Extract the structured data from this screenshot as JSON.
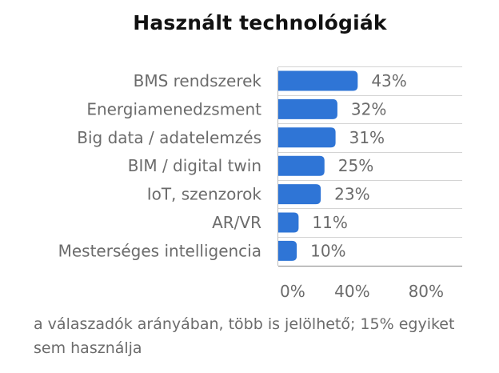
{
  "chart_data": {
    "type": "bar",
    "orientation": "horizontal",
    "title": "Használt technológiák",
    "categories": [
      "BMS rendszerek",
      "Energiamenedzsment",
      "Big data / adatelemzés",
      "BIM / digital twin",
      "IoT, szenzorok",
      "AR/VR",
      "Mesterséges intelligencia"
    ],
    "values": [
      43,
      32,
      31,
      25,
      23,
      11,
      10
    ],
    "value_labels": [
      "43%",
      "32%",
      "31%",
      "25%",
      "23%",
      "11%",
      "10%"
    ],
    "xlim": [
      0,
      100
    ],
    "x_ticks": [
      {
        "value": 0,
        "label": "0%"
      },
      {
        "value": 40,
        "label": "40%"
      },
      {
        "value": 80,
        "label": "80%"
      }
    ],
    "grid": true,
    "bar_color": "#2f75d6",
    "footnote": "a válaszadók arányában, több is jelölhető; 15% egyiket sem használja"
  }
}
